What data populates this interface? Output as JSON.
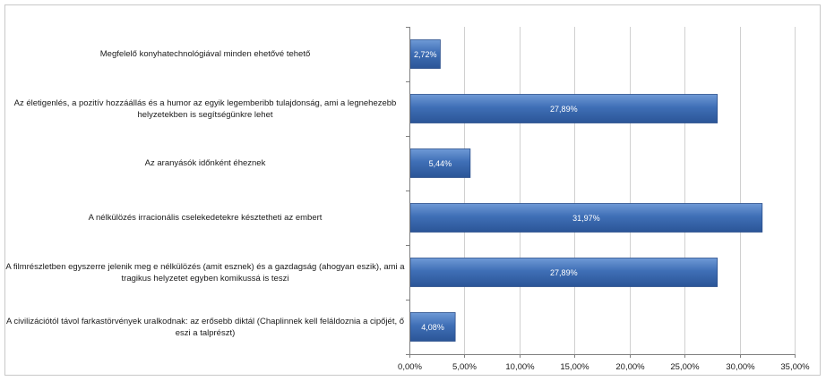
{
  "chart_data": {
    "type": "bar",
    "orientation": "horizontal",
    "categories": [
      "Megfelelő konyhatechnológiával minden ehetővé tehető",
      "Az életigenlés, a pozitív hozzáállás és a humor az egyik legemberibb tulajdonság, ami a legnehezebb helyzetekben is segítségünkre lehet",
      "Az aranyásók időnként éheznek",
      "A nélkülözés irracionális cselekedetekre késztetheti az embert",
      "A filmrészletben egyszerre jelenik meg e nélkülözés (amit esznek) és a gazdagság (ahogyan eszik), ami a tragikus helyzetet egyben komikussá is teszi",
      "A civilizációtól távol farkastörvények uralkodnak: az erősebb diktál (Chaplinnek kell feláldoznia a cipőjét, ő eszi a talprészt)"
    ],
    "values": [
      2.72,
      27.89,
      5.44,
      31.97,
      27.89,
      4.08
    ],
    "data_labels": [
      "2,72%",
      "27,89%",
      "5,44%",
      "31,97%",
      "27,89%",
      "4,08%"
    ],
    "x_ticks": [
      "0,00%",
      "5,00%",
      "10,00%",
      "15,00%",
      "20,00%",
      "25,00%",
      "30,00%",
      "35,00%"
    ],
    "xlim": [
      0,
      35
    ],
    "grid": true,
    "bar_color": "#3f6fb6"
  }
}
